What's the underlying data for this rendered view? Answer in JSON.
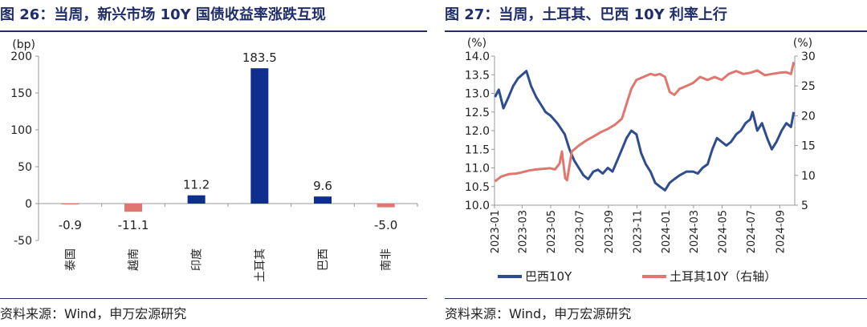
{
  "left": {
    "title": "图 26：当周，新兴市场 10Y 国债收益率涨跌互现",
    "source": "资料来源：Wind，申万宏源研究"
  },
  "right": {
    "title": "图 27：当周，土耳其、巴西 10Y 利率上行",
    "source": "资料来源：Wind，申万宏源研究"
  },
  "chart_data": [
    {
      "type": "bar",
      "unit": "(bp)",
      "categories": [
        "泰国",
        "越南",
        "印度",
        "土耳其",
        "巴西",
        "南非"
      ],
      "values": [
        -0.9,
        -11.1,
        11.2,
        183.5,
        9.6,
        -5.0
      ],
      "value_labels": [
        "-0.9",
        "-11.1",
        "11.2",
        "183.5",
        "9.6",
        "-5.0"
      ],
      "ylim": [
        -50,
        200
      ],
      "yticks": [
        "-50",
        "0",
        "50",
        "100",
        "150",
        "200"
      ],
      "colors": {
        "positive": "#0f2f8f",
        "negative": "#e0776f"
      }
    },
    {
      "type": "line",
      "left_axis": {
        "unit": "(%)",
        "ylim": [
          10.0,
          14.0
        ],
        "ticks": [
          "10.0",
          "10.5",
          "11.0",
          "11.5",
          "12.0",
          "12.5",
          "13.0",
          "13.5",
          "14.0"
        ]
      },
      "right_axis": {
        "unit": "(%)",
        "ylim": [
          5,
          30
        ],
        "ticks": [
          "5",
          "10",
          "15",
          "20",
          "25",
          "30"
        ]
      },
      "xticks": [
        "2023-01",
        "2023-03",
        "2023-05",
        "2023-07",
        "2023-09",
        "2023-11",
        "2024-01",
        "2024-03",
        "2024-05",
        "2024-07",
        "2024-09"
      ],
      "series": [
        {
          "name": "巴西10Y",
          "axis": "left",
          "color": "#2e4d8f",
          "points": [
            [
              "2023-01-02",
              12.9
            ],
            [
              "2023-01-10",
              13.1
            ],
            [
              "2023-01-20",
              12.6
            ],
            [
              "2023-01-31",
              12.9
            ],
            [
              "2023-02-10",
              13.2
            ],
            [
              "2023-02-20",
              13.4
            ],
            [
              "2023-03-01",
              13.5
            ],
            [
              "2023-03-10",
              13.6
            ],
            [
              "2023-03-20",
              13.2
            ],
            [
              "2023-03-31",
              12.9
            ],
            [
              "2023-04-10",
              12.7
            ],
            [
              "2023-04-20",
              12.5
            ],
            [
              "2023-05-01",
              12.4
            ],
            [
              "2023-05-15",
              12.2
            ],
            [
              "2023-05-31",
              11.9
            ],
            [
              "2023-06-10",
              11.5
            ],
            [
              "2023-06-20",
              11.2
            ],
            [
              "2023-06-30",
              11.0
            ],
            [
              "2023-07-10",
              10.8
            ],
            [
              "2023-07-20",
              10.7
            ],
            [
              "2023-07-31",
              10.9
            ],
            [
              "2023-08-10",
              10.95
            ],
            [
              "2023-08-20",
              10.85
            ],
            [
              "2023-08-31",
              11.0
            ],
            [
              "2023-09-10",
              10.9
            ],
            [
              "2023-09-20",
              11.2
            ],
            [
              "2023-09-30",
              11.5
            ],
            [
              "2023-10-10",
              11.8
            ],
            [
              "2023-10-20",
              12.0
            ],
            [
              "2023-10-31",
              11.9
            ],
            [
              "2023-11-10",
              11.4
            ],
            [
              "2023-11-20",
              11.1
            ],
            [
              "2023-11-30",
              10.9
            ],
            [
              "2023-12-10",
              10.6
            ],
            [
              "2023-12-20",
              10.5
            ],
            [
              "2023-12-31",
              10.4
            ],
            [
              "2024-01-10",
              10.6
            ],
            [
              "2024-01-20",
              10.7
            ],
            [
              "2024-01-31",
              10.8
            ],
            [
              "2024-02-15",
              10.9
            ],
            [
              "2024-02-29",
              10.9
            ],
            [
              "2024-03-10",
              10.85
            ],
            [
              "2024-03-20",
              11.0
            ],
            [
              "2024-03-31",
              11.1
            ],
            [
              "2024-04-10",
              11.5
            ],
            [
              "2024-04-20",
              11.8
            ],
            [
              "2024-04-30",
              11.7
            ],
            [
              "2024-05-10",
              11.6
            ],
            [
              "2024-05-20",
              11.7
            ],
            [
              "2024-05-31",
              11.9
            ],
            [
              "2024-06-10",
              12.0
            ],
            [
              "2024-06-20",
              12.2
            ],
            [
              "2024-06-30",
              12.3
            ],
            [
              "2024-07-05",
              12.5
            ],
            [
              "2024-07-15",
              12.0
            ],
            [
              "2024-07-25",
              12.2
            ],
            [
              "2024-08-05",
              11.8
            ],
            [
              "2024-08-15",
              11.5
            ],
            [
              "2024-08-25",
              11.7
            ],
            [
              "2024-09-05",
              12.0
            ],
            [
              "2024-09-15",
              12.2
            ],
            [
              "2024-09-25",
              12.1
            ],
            [
              "2024-10-01",
              12.5
            ]
          ]
        },
        {
          "name": "土耳其10Y（右轴）",
          "axis": "right",
          "color": "#e0776f",
          "points": [
            [
              "2023-01-02",
              9.0
            ],
            [
              "2023-01-15",
              9.8
            ],
            [
              "2023-01-31",
              10.2
            ],
            [
              "2023-02-15",
              10.3
            ],
            [
              "2023-02-28",
              10.5
            ],
            [
              "2023-03-15",
              10.8
            ],
            [
              "2023-03-31",
              11.0
            ],
            [
              "2023-04-15",
              11.1
            ],
            [
              "2023-04-30",
              11.2
            ],
            [
              "2023-05-10",
              11.0
            ],
            [
              "2023-05-20",
              12.0
            ],
            [
              "2023-05-25",
              14.0
            ],
            [
              "2023-06-01",
              9.5
            ],
            [
              "2023-06-05",
              9.2
            ],
            [
              "2023-06-15",
              14.0
            ],
            [
              "2023-06-30",
              15.0
            ],
            [
              "2023-07-15",
              15.8
            ],
            [
              "2023-07-31",
              16.5
            ],
            [
              "2023-08-15",
              17.2
            ],
            [
              "2023-08-31",
              17.8
            ],
            [
              "2023-09-15",
              18.5
            ],
            [
              "2023-09-30",
              19.5
            ],
            [
              "2023-10-10",
              22.0
            ],
            [
              "2023-10-20",
              24.5
            ],
            [
              "2023-10-31",
              26.0
            ],
            [
              "2023-11-15",
              26.5
            ],
            [
              "2023-11-30",
              27.0
            ],
            [
              "2023-12-10",
              26.8
            ],
            [
              "2023-12-20",
              27.0
            ],
            [
              "2023-12-31",
              26.5
            ],
            [
              "2024-01-10",
              24.0
            ],
            [
              "2024-01-20",
              23.5
            ],
            [
              "2024-01-31",
              24.5
            ],
            [
              "2024-02-15",
              25.0
            ],
            [
              "2024-02-29",
              25.5
            ],
            [
              "2024-03-15",
              26.5
            ],
            [
              "2024-03-31",
              26.0
            ],
            [
              "2024-04-15",
              26.5
            ],
            [
              "2024-04-30",
              26.0
            ],
            [
              "2024-05-15",
              27.0
            ],
            [
              "2024-05-31",
              27.5
            ],
            [
              "2024-06-15",
              27.0
            ],
            [
              "2024-06-30",
              27.2
            ],
            [
              "2024-07-15",
              27.6
            ],
            [
              "2024-07-31",
              26.8
            ],
            [
              "2024-08-15",
              27.0
            ],
            [
              "2024-08-31",
              27.2
            ],
            [
              "2024-09-15",
              27.3
            ],
            [
              "2024-09-25",
              27.0
            ],
            [
              "2024-10-01",
              29.0
            ]
          ]
        }
      ]
    }
  ]
}
